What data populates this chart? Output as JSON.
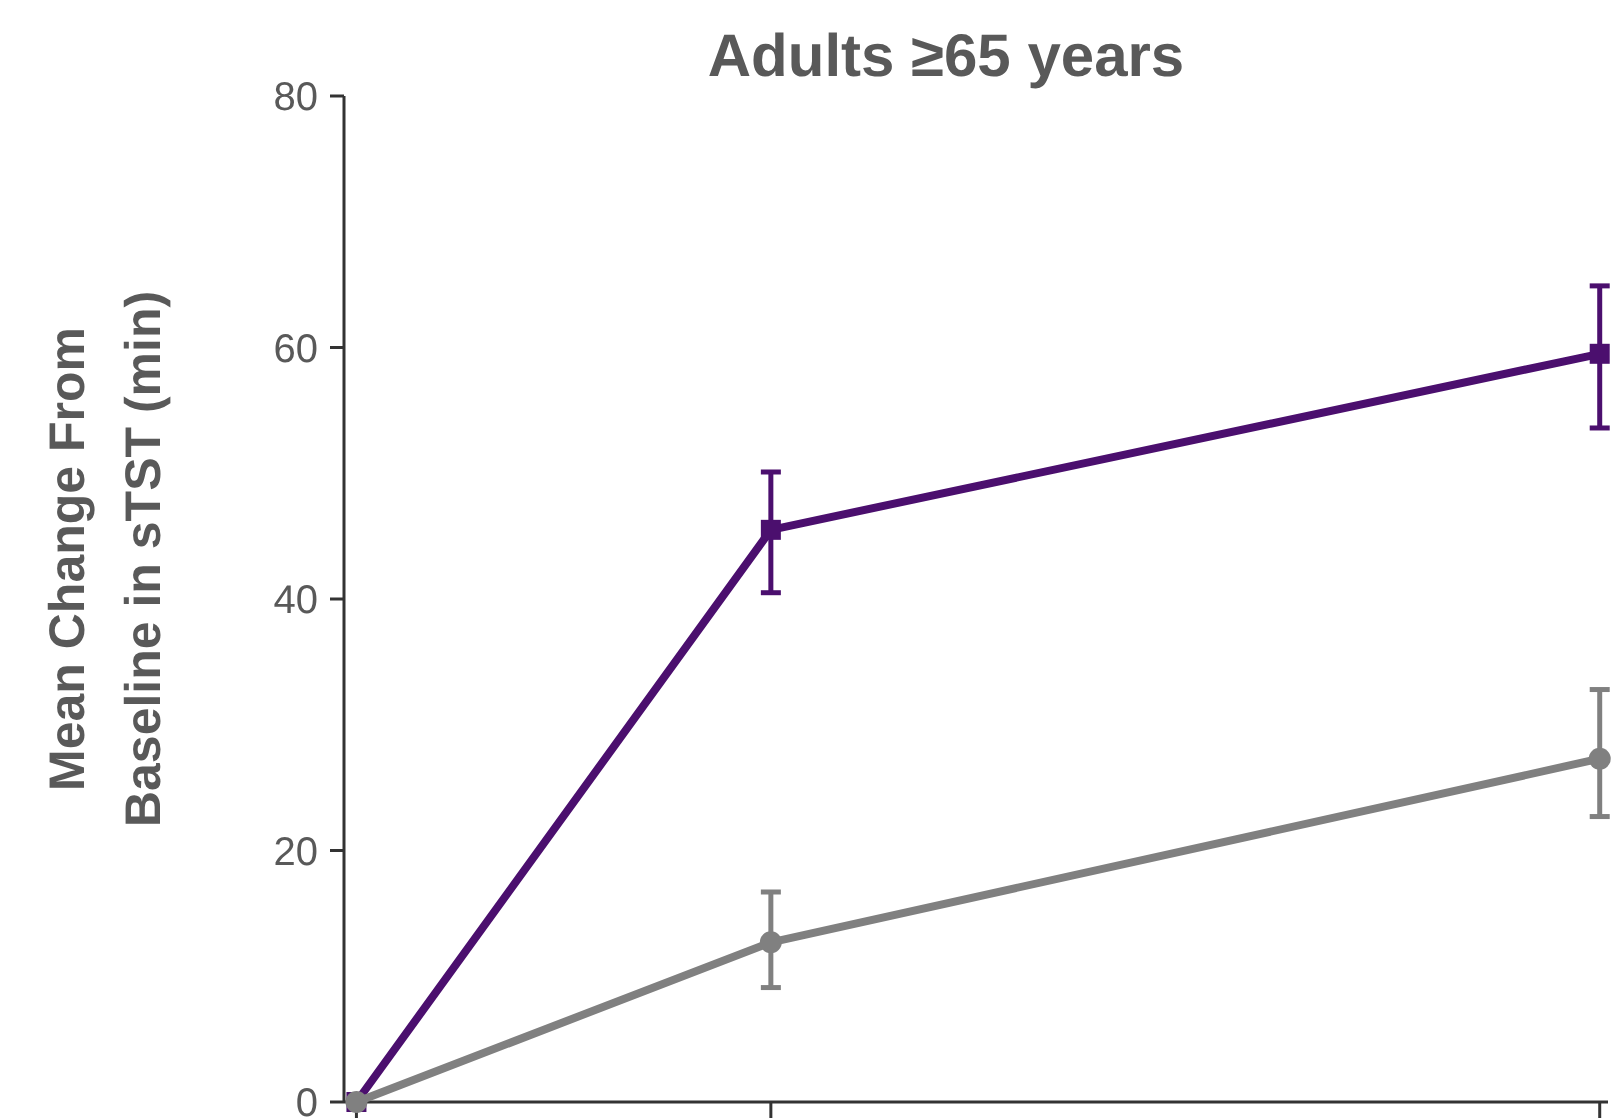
{
  "chart_data": {
    "type": "line",
    "title": "Adults ≥65 years",
    "ylabel": "Mean Change From\nBaseline in sTST (min)",
    "categories": [
      null,
      null,
      null,
      null
    ],
    "ylim": [
      0,
      80
    ],
    "yticks": [
      0,
      20,
      40,
      60,
      80
    ],
    "tick_labels": "y",
    "grid": false,
    "line_style": "solid",
    "series": [
      {
        "color": "#4b0f6e",
        "marker": "square",
        "values": [
          0,
          45.5,
          null,
          59.5
        ],
        "errors": [
          null,
          [
            40.5,
            50.1
          ],
          null,
          [
            53.6,
            64.9
          ]
        ]
      },
      {
        "color": "#808080",
        "marker": "circle",
        "values": [
          0,
          12.7,
          null,
          27.3
        ],
        "errors": [
          null,
          [
            9.1,
            16.7
          ],
          null,
          [
            22.7,
            32.8
          ]
        ]
      }
    ]
  }
}
